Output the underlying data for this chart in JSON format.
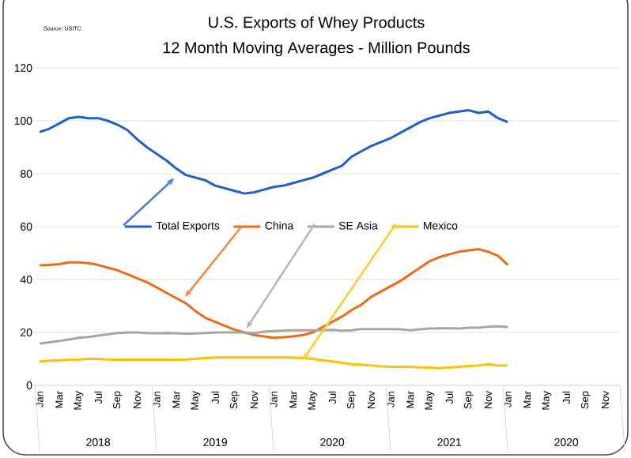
{
  "chart_data": {
    "type": "line",
    "title": "U.S. Exports of Whey Products",
    "subtitle": "12 Month Moving Averages - Million Pounds",
    "categories": [
      "Jan",
      null,
      "Mar",
      null,
      "May",
      null,
      "Jul",
      null,
      "Sep",
      null,
      "Nov",
      null,
      "Jan",
      null,
      "Mar",
      null,
      "May",
      null,
      "Jul",
      null,
      "Sep",
      null,
      "Nov",
      null,
      "Jan",
      null,
      "Mar",
      null,
      "May",
      null,
      "Jul",
      null,
      "Sep",
      null,
      "Nov",
      null,
      "Jan",
      null,
      "Mar",
      null,
      "May",
      null,
      "Jul",
      null,
      "Sep",
      null,
      "Nov",
      null,
      "Jan",
      null,
      "Mar",
      null,
      "May",
      null,
      "Jul",
      null,
      "Sep",
      null,
      "Nov",
      null
    ],
    "series": [
      {
        "name": "Total Exports",
        "color": "#1f5fc8",
        "values": [
          95.8,
          97,
          99,
          101,
          101.5,
          101,
          101,
          100,
          98.5,
          96.5,
          93,
          90,
          87.5,
          85,
          82,
          79.5,
          78.5,
          77.5,
          75.5,
          74.5,
          73.5,
          72.5,
          73,
          74,
          75,
          75.5,
          76.5,
          77.5,
          78.5,
          80,
          81.5,
          83,
          86.5,
          88.5,
          90.5,
          92,
          93.5,
          95.5,
          97.5,
          99.5,
          101,
          102,
          103,
          103.5,
          104,
          103,
          103.5,
          101,
          99.5,
          null,
          null,
          null,
          null,
          null,
          null,
          null,
          null,
          null,
          null,
          null
        ]
      },
      {
        "name": "China",
        "color": "#ed6b17",
        "values": [
          45.4,
          45.5,
          45.8,
          46.5,
          46.5,
          46.2,
          45.5,
          44.5,
          43.5,
          42,
          40.5,
          39,
          37,
          35,
          33,
          31,
          28,
          25.5,
          24,
          22.5,
          21,
          20,
          19,
          18.5,
          18,
          18.2,
          18.5,
          19,
          20,
          22,
          24,
          26,
          28.5,
          30.5,
          33.5,
          35.5,
          37.5,
          39.5,
          42,
          44.5,
          47,
          48.5,
          49.5,
          50.5,
          51,
          51.5,
          50.5,
          49,
          45.5,
          null,
          null,
          null,
          null,
          null,
          null,
          null,
          null,
          null,
          null,
          null
        ]
      },
      {
        "name": "SE Asia",
        "color": "#a5a5a5",
        "values": [
          15.8,
          16.3,
          16.8,
          17.3,
          18,
          18.3,
          18.8,
          19.3,
          19.8,
          20,
          20,
          19.8,
          19.7,
          19.8,
          19.7,
          19.5,
          19.6,
          19.8,
          20,
          20,
          20,
          20,
          19.8,
          20.3,
          20.5,
          20.7,
          20.8,
          20.8,
          20.8,
          20.8,
          21,
          20.7,
          20.8,
          21.3,
          21.3,
          21.3,
          21.3,
          21.2,
          20.8,
          21.2,
          21.5,
          21.6,
          21.6,
          21.5,
          21.8,
          21.8,
          22.2,
          22.3,
          22,
          null,
          null,
          null,
          null,
          null,
          null,
          null,
          null,
          null,
          null,
          null
        ]
      },
      {
        "name": "Mexico",
        "color": "#ffc000",
        "values": [
          9,
          9.3,
          9.5,
          9.7,
          9.8,
          10,
          10,
          9.8,
          9.7,
          9.7,
          9.7,
          9.7,
          9.7,
          9.7,
          9.7,
          9.8,
          10,
          10.3,
          10.5,
          10.5,
          10.5,
          10.5,
          10.5,
          10.5,
          10.5,
          10.5,
          10.5,
          10.3,
          10,
          9.5,
          9,
          8.5,
          8,
          7.8,
          7.5,
          7.2,
          7,
          7,
          7,
          6.8,
          6.7,
          6.5,
          6.7,
          7,
          7.3,
          7.5,
          8,
          7.5,
          7.5,
          null,
          null,
          null,
          null,
          null,
          null,
          null,
          null,
          null,
          null,
          null
        ]
      }
    ],
    "ylim": [
      0,
      120
    ],
    "yticks": [
      0,
      20,
      40,
      60,
      80,
      100,
      120
    ],
    "grid": "y",
    "legend": "center",
    "marker": "none",
    "line_style": "solid",
    "annotations": [
      "Source: USITC",
      "2018",
      "2019",
      "2020",
      "2021",
      "2020"
    ]
  }
}
